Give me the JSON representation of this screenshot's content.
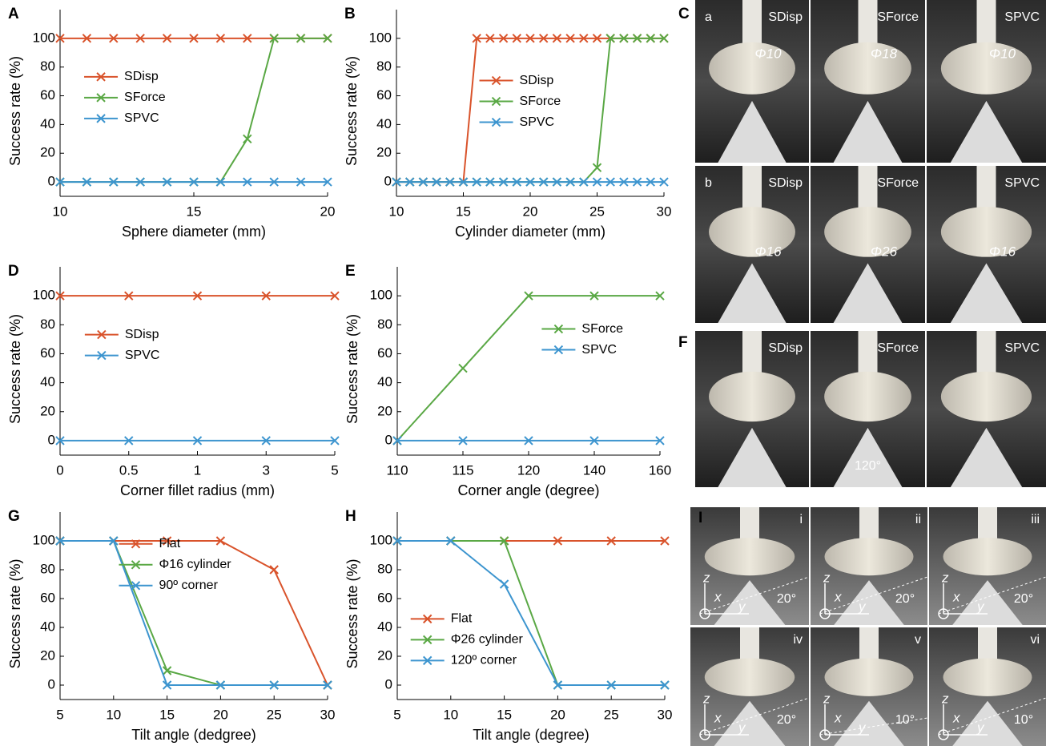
{
  "chart_data": [
    {
      "type": "line",
      "panel": "A",
      "xlabel": "Sphere diameter (mm)",
      "ylabel": "Success rate (%)",
      "x": [
        10,
        11,
        12,
        13,
        14,
        15,
        16,
        17,
        18,
        19,
        20
      ],
      "xlim": [
        10,
        20
      ],
      "xticks": [
        10,
        15,
        20
      ],
      "ylim": [
        -10,
        120
      ],
      "yticks": [
        0,
        20,
        40,
        60,
        80,
        100
      ],
      "legend": "upper left",
      "series": [
        {
          "name": "SDisp",
          "color": "#d9532b",
          "values": [
            100,
            100,
            100,
            100,
            100,
            100,
            100,
            100,
            100,
            100,
            100
          ]
        },
        {
          "name": "SForce",
          "color": "#5aa845",
          "values": [
            0,
            0,
            0,
            0,
            0,
            0,
            0,
            30,
            100,
            100,
            100
          ]
        },
        {
          "name": "SPVC",
          "color": "#3d95cf",
          "values": [
            0,
            0,
            0,
            0,
            0,
            0,
            0,
            0,
            0,
            0,
            0
          ]
        }
      ]
    },
    {
      "type": "line",
      "panel": "B",
      "xlabel": "Cylinder diameter (mm)",
      "ylabel": "Success rate (%)",
      "x": [
        10,
        11,
        12,
        13,
        14,
        15,
        16,
        17,
        18,
        19,
        20,
        21,
        22,
        23,
        24,
        25,
        26,
        27,
        28,
        29,
        30
      ],
      "xlim": [
        10,
        30
      ],
      "xticks": [
        10,
        15,
        20,
        25,
        30
      ],
      "ylim": [
        -10,
        120
      ],
      "yticks": [
        0,
        20,
        40,
        60,
        80,
        100
      ],
      "legend": "upper center",
      "series": [
        {
          "name": "SDisp",
          "color": "#d9532b",
          "values": [
            0,
            0,
            0,
            0,
            0,
            0,
            100,
            100,
            100,
            100,
            100,
            100,
            100,
            100,
            100,
            100,
            100,
            100,
            100,
            100,
            100
          ]
        },
        {
          "name": "SForce",
          "color": "#5aa845",
          "values": [
            0,
            0,
            0,
            0,
            0,
            0,
            0,
            0,
            0,
            0,
            0,
            0,
            0,
            0,
            0,
            10,
            100,
            100,
            100,
            100,
            100
          ]
        },
        {
          "name": "SPVC",
          "color": "#3d95cf",
          "values": [
            0,
            0,
            0,
            0,
            0,
            0,
            0,
            0,
            0,
            0,
            0,
            0,
            0,
            0,
            0,
            0,
            0,
            0,
            0,
            0,
            0
          ]
        }
      ]
    },
    {
      "type": "line",
      "panel": "D",
      "xlabel": "Corner fillet radius (mm)",
      "ylabel": "Success rate (%)",
      "categories": [
        "0",
        "0.5",
        "1",
        "3",
        "5"
      ],
      "ylim": [
        -10,
        120
      ],
      "yticks": [
        0,
        20,
        40,
        60,
        80,
        100
      ],
      "legend": "upper left",
      "series": [
        {
          "name": "SDisp",
          "color": "#d9532b",
          "values": [
            100,
            100,
            100,
            100,
            100
          ]
        },
        {
          "name": "SPVC",
          "color": "#3d95cf",
          "values": [
            0,
            0,
            0,
            0,
            0
          ]
        }
      ]
    },
    {
      "type": "line",
      "panel": "E",
      "xlabel": "Corner angle (degree)",
      "ylabel": "Success rate (%)",
      "categories": [
        "110",
        "115",
        "120",
        "140",
        "160"
      ],
      "ylim": [
        -10,
        120
      ],
      "yticks": [
        0,
        20,
        40,
        60,
        80,
        100
      ],
      "legend": "center right",
      "series": [
        {
          "name": "SForce",
          "color": "#5aa845",
          "values": [
            0,
            50,
            100,
            100,
            100
          ]
        },
        {
          "name": "SPVC",
          "color": "#3d95cf",
          "values": [
            0,
            0,
            0,
            0,
            0
          ]
        }
      ]
    },
    {
      "type": "line",
      "panel": "G",
      "xlabel": "Tilt angle (dedgree)",
      "ylabel": "Success rate (%)",
      "x": [
        5,
        10,
        15,
        20,
        25,
        30
      ],
      "xlim": [
        5,
        30
      ],
      "xticks": [
        5,
        10,
        15,
        20,
        25,
        30
      ],
      "ylim": [
        -10,
        120
      ],
      "yticks": [
        0,
        20,
        40,
        60,
        80,
        100
      ],
      "legend": "top",
      "series": [
        {
          "name": "Flat",
          "color": "#d9532b",
          "values": [
            100,
            100,
            100,
            100,
            80,
            0
          ]
        },
        {
          "name": "Φ16 cylinder",
          "color": "#5aa845",
          "values": [
            100,
            100,
            10,
            0,
            0,
            0
          ]
        },
        {
          "name": "90º corner",
          "color": "#3d95cf",
          "values": [
            100,
            100,
            0,
            0,
            0,
            0
          ]
        }
      ]
    },
    {
      "type": "line",
      "panel": "H",
      "xlabel": "Tilt angle (degree)",
      "ylabel": "Success rate (%)",
      "x": [
        5,
        10,
        15,
        20,
        25,
        30
      ],
      "xlim": [
        5,
        30
      ],
      "xticks": [
        5,
        10,
        15,
        20,
        25,
        30
      ],
      "ylim": [
        -10,
        120
      ],
      "yticks": [
        0,
        20,
        40,
        60,
        80,
        100
      ],
      "legend": "center left",
      "series": [
        {
          "name": "Flat",
          "color": "#d9532b",
          "values": [
            100,
            100,
            100,
            100,
            100,
            100
          ]
        },
        {
          "name": "Φ26 cylinder",
          "color": "#5aa845",
          "values": [
            100,
            100,
            100,
            0,
            0,
            0
          ]
        },
        {
          "name": "120º corner",
          "color": "#3d95cf",
          "values": [
            100,
            100,
            70,
            0,
            0,
            0
          ]
        }
      ]
    }
  ],
  "photos": {
    "C": {
      "label": "C",
      "rows": [
        {
          "tag": "a",
          "cells": [
            {
              "name": "SDisp",
              "dim": "Φ10"
            },
            {
              "name": "SForce",
              "dim": "Φ18"
            },
            {
              "name": "SPVC",
              "dim": "Φ10"
            }
          ]
        },
        {
          "tag": "b",
          "cells": [
            {
              "name": "SDisp",
              "dim": "Φ16"
            },
            {
              "name": "SForce",
              "dim": "Φ26"
            },
            {
              "name": "SPVC",
              "dim": "Φ16"
            }
          ]
        }
      ]
    },
    "F": {
      "label": "F",
      "cells": [
        {
          "name": "SDisp"
        },
        {
          "name": "SForce",
          "dim": "120°"
        },
        {
          "name": "SPVC"
        }
      ]
    },
    "I": {
      "label": "I",
      "axes": [
        "z",
        "x",
        "y"
      ],
      "cells": [
        {
          "tag": "i",
          "angle": "20°"
        },
        {
          "tag": "ii",
          "angle": "20°"
        },
        {
          "tag": "iii",
          "angle": "20°"
        },
        {
          "tag": "iv",
          "angle": "20°"
        },
        {
          "tag": "v",
          "angle": "10°"
        },
        {
          "tag": "vi",
          "angle": "10°"
        }
      ]
    }
  }
}
